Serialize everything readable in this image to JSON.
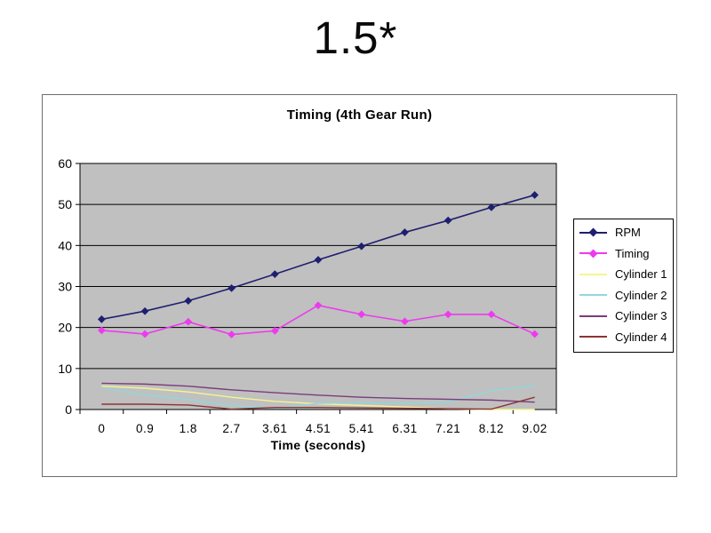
{
  "slide": {
    "title": "1.5*"
  },
  "chart_data": {
    "type": "line",
    "title": "Timing (4th Gear Run)",
    "xlabel": "Time (seconds)",
    "ylabel": "",
    "ylim": [
      0,
      60
    ],
    "yticks": [
      0,
      10,
      20,
      30,
      40,
      50,
      60
    ],
    "categories": [
      "0",
      "0.9",
      "1.8",
      "2.7",
      "3.61",
      "4.51",
      "5.41",
      "6.31",
      "7.21",
      "8.12",
      "9.02"
    ],
    "grid": true,
    "legend_position": "right",
    "plot_bg": "#c0c0c0",
    "axis_color": "#000000",
    "series": [
      {
        "name": "RPM",
        "color": "#1f1f70",
        "marker": "diamond",
        "values": [
          22,
          24,
          26.5,
          29.6,
          33,
          36.5,
          39.8,
          43.2,
          46.1,
          49.3,
          52.3
        ]
      },
      {
        "name": "Timing",
        "color": "#ee3aee",
        "marker": "diamond",
        "values": [
          19.3,
          18.4,
          21.4,
          18.3,
          19.2,
          25.4,
          23.2,
          21.5,
          23.2,
          23.2,
          18.4
        ]
      },
      {
        "name": "Cylinder 1",
        "color": "#f5f590",
        "marker": "none",
        "values": [
          5.7,
          5.2,
          4.3,
          3.0,
          2.0,
          1.4,
          1.0,
          0.6,
          0.2,
          0,
          0
        ]
      },
      {
        "name": "Cylinder 2",
        "color": "#8fd8dc",
        "marker": "none",
        "values": [
          5.3,
          3.6,
          2.4,
          1.0,
          0.3,
          1.5,
          1.6,
          1.5,
          1.8,
          4.6,
          5.8
        ]
      },
      {
        "name": "Cylinder 3",
        "color": "#7a3d7a",
        "marker": "none",
        "values": [
          6.4,
          6.2,
          5.7,
          4.8,
          4.1,
          3.5,
          3.0,
          2.7,
          2.5,
          2.3,
          1.8
        ]
      },
      {
        "name": "Cylinder 4",
        "color": "#8b3535",
        "marker": "none",
        "values": [
          1.3,
          1.3,
          1.1,
          0.1,
          0.5,
          0.5,
          0.4,
          0.3,
          0.2,
          0.1,
          3.0
        ]
      }
    ]
  }
}
